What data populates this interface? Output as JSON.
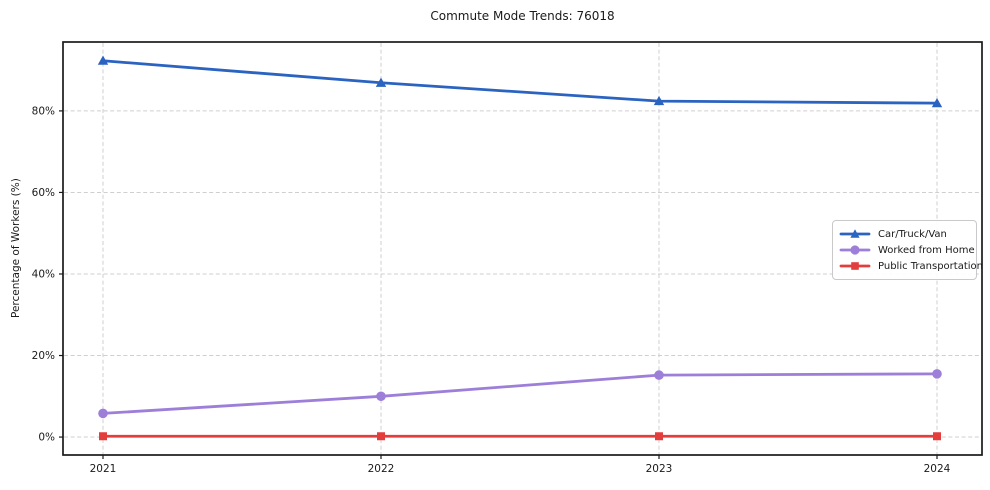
{
  "chart_data": {
    "type": "line",
    "title": "Commute Mode Trends: 76018",
    "xlabel": "",
    "ylabel": "Percentage of Workers (%)",
    "x": [
      "2021",
      "2022",
      "2023",
      "2024"
    ],
    "series": [
      {
        "name": "Car/Truck/Van",
        "color": "#2b63c1",
        "marker": "triangle",
        "values": [
          92.3,
          86.9,
          82.4,
          81.9
        ]
      },
      {
        "name": "Worked from Home",
        "color": "#9d7fd9",
        "marker": "circle",
        "values": [
          5.8,
          10.0,
          15.2,
          15.5
        ]
      },
      {
        "name": "Public Transportation",
        "color": "#e33d3d",
        "marker": "square",
        "values": [
          0.2,
          0.2,
          0.2,
          0.2
        ]
      }
    ],
    "yticks": [
      0,
      20,
      40,
      60,
      80
    ],
    "ytick_labels": [
      "0%",
      "20%",
      "40%",
      "60%",
      "80%"
    ],
    "ylim": [
      -4.4,
      96.9
    ],
    "grid": true,
    "grid_style": "dashed",
    "legend_position": "center-right",
    "colors": {
      "spine": "#1a1a1a",
      "grid": "#cfcfcf",
      "text": "#1a1a1a",
      "background": "#ffffff"
    }
  }
}
